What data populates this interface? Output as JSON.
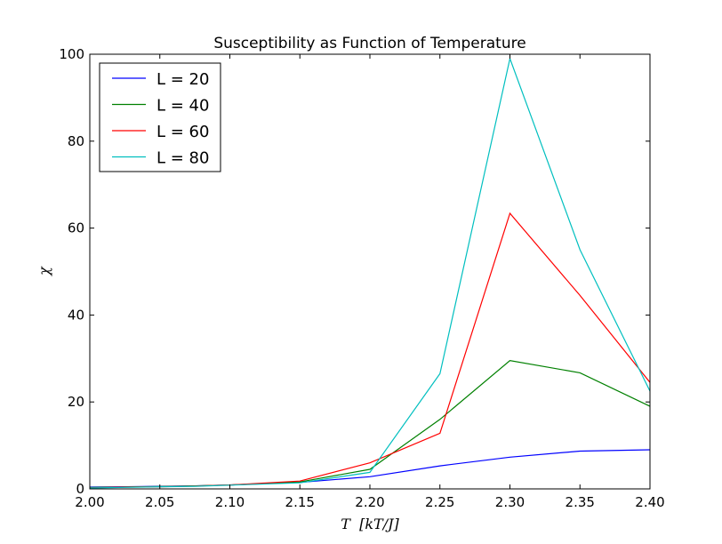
{
  "chart_data": {
    "type": "line",
    "title": "Susceptibility as Function of Temperature",
    "xlabel": "T  [kT/J]",
    "ylabel": "χ",
    "xlim": [
      2.0,
      2.4
    ],
    "ylim": [
      0,
      100
    ],
    "xticks": [
      "2.00",
      "2.05",
      "2.10",
      "2.15",
      "2.20",
      "2.25",
      "2.30",
      "2.35",
      "2.40"
    ],
    "yticks": [
      "0",
      "20",
      "40",
      "60",
      "80",
      "100"
    ],
    "legend": "top-left",
    "grid": false,
    "x": [
      2.0,
      2.025,
      2.05,
      2.075,
      2.1,
      2.15,
      2.2,
      2.25,
      2.3,
      2.35,
      2.4
    ],
    "series": [
      {
        "name": "L = 20",
        "color": "#0000ff",
        "values": [
          0.4,
          0.5,
          0.6,
          0.7,
          0.9,
          1.5,
          2.8,
          5.3,
          7.3,
          8.7,
          9.0
        ]
      },
      {
        "name": "L = 40",
        "color": "#008000",
        "values": [
          0.3,
          0.45,
          0.55,
          0.7,
          0.9,
          1.6,
          4.5,
          16.0,
          29.5,
          26.7,
          19.0
        ]
      },
      {
        "name": "L = 60",
        "color": "#ff0000",
        "values": [
          0.25,
          0.4,
          0.5,
          0.65,
          0.9,
          1.8,
          6.0,
          12.8,
          63.4,
          44.5,
          24.5
        ]
      },
      {
        "name": "L = 80",
        "color": "#00bfbf",
        "values": [
          0.2,
          0.35,
          0.5,
          0.6,
          0.85,
          1.4,
          3.8,
          26.5,
          99.0,
          55.0,
          22.5
        ]
      }
    ]
  }
}
